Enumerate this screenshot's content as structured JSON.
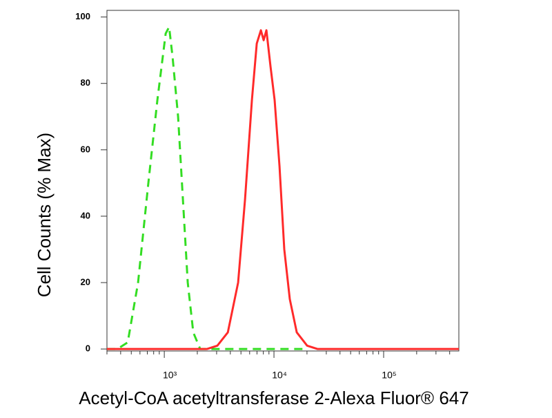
{
  "chart_data": {
    "type": "line",
    "y_label": "Cell Counts (% Max)",
    "x_label": "Acetyl-CoA acetyltransferase 2-Alexa Fluor® 647",
    "xlog": true,
    "xlim": [
      300,
      485000
    ],
    "ylim": [
      -0.6,
      102
    ],
    "yticks": [
      0,
      20,
      40,
      60,
      80,
      100
    ],
    "xticks": [
      {
        "value": 1000,
        "label": "10³"
      },
      {
        "value": 10000,
        "label": "10⁴"
      },
      {
        "value": 100000,
        "label": "10⁵"
      }
    ],
    "xminor": [
      300,
      400,
      500,
      600,
      700,
      800,
      900,
      2000,
      3000,
      4000,
      5000,
      6000,
      7000,
      8000,
      9000,
      20000,
      30000,
      40000,
      50000,
      60000,
      70000,
      80000,
      90000,
      200000,
      300000,
      400000
    ],
    "series": [
      {
        "color": "#33dd22",
        "style": "dashed",
        "x": [
          300,
          374,
          464,
          577,
          716,
          865,
          1029,
          1106,
          1190,
          1336,
          1479,
          1636,
          1837,
          2125,
          2456,
          20000
        ],
        "values": [
          0,
          0,
          2,
          20,
          50,
          75,
          95,
          97,
          88,
          70,
          45,
          20,
          5,
          0,
          0,
          0
        ]
      },
      {
        "color": "#ff2a2a",
        "style": "solid",
        "x": [
          300,
          2456,
          3048,
          3794,
          4713,
          5445,
          6295,
          6968,
          7604,
          8054,
          8531,
          9306,
          10140,
          11230,
          12420,
          13950,
          16130,
          20050,
          24890,
          485000
        ],
        "values": [
          0,
          0,
          1,
          5,
          20,
          45,
          75,
          92,
          96,
          93,
          96,
          85,
          75,
          55,
          30,
          15,
          5,
          1,
          0,
          0
        ]
      }
    ]
  }
}
